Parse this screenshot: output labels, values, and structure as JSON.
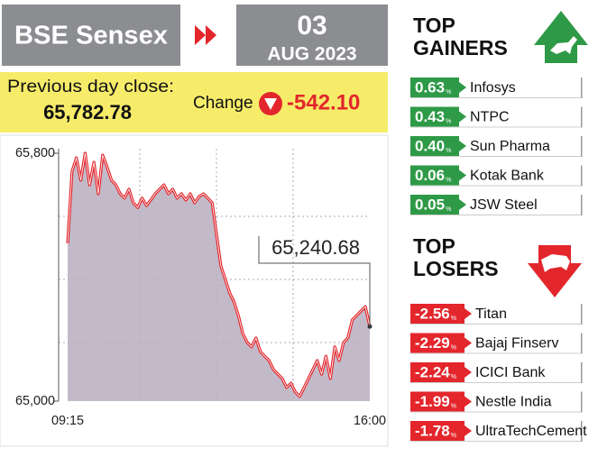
{
  "header": {
    "title": "BSE Sensex",
    "day": "03",
    "month_year": "AUG 2023"
  },
  "summary": {
    "previous_close_label": "Previous day close:",
    "previous_close": "65,782.78",
    "change_label": "Change",
    "change": "-542.10"
  },
  "chart_data": {
    "type": "line",
    "categories": [
      "09:15",
      null,
      null,
      null,
      null,
      null,
      null,
      null,
      null,
      null,
      null,
      null,
      null,
      null,
      null,
      null,
      null,
      null,
      null,
      null,
      null,
      null,
      null,
      null,
      null,
      null,
      null,
      null,
      null,
      null,
      null,
      null,
      null,
      null,
      null,
      null,
      null,
      null,
      null,
      null,
      null,
      null,
      null,
      null,
      null,
      null,
      null,
      null,
      null,
      null,
      null,
      null,
      null,
      null,
      null,
      null,
      null,
      null,
      null,
      null,
      null,
      null,
      null,
      null,
      null,
      null,
      null,
      null,
      null,
      "16:00"
    ],
    "values": [
      65509,
      65742,
      65785,
      65713,
      65800,
      65698,
      65771,
      65669,
      65794,
      65756,
      65713,
      65698,
      65669,
      65655,
      65684,
      65640,
      65625,
      65655,
      65631,
      65649,
      65669,
      65684,
      65698,
      65669,
      65684,
      65655,
      65669,
      65649,
      65669,
      65640,
      65660,
      65669,
      65655,
      65640,
      65538,
      65436,
      65393,
      65349,
      65320,
      65276,
      65218,
      65189,
      65175,
      65204,
      65160,
      65145,
      65131,
      65102,
      65087,
      65073,
      65044,
      65058,
      65029,
      65015,
      65044,
      65073,
      65102,
      65131,
      65087,
      65145,
      65073,
      65175,
      65131,
      65189,
      65204,
      65262,
      65276,
      65291,
      65305,
      65240.68
    ],
    "color": "#e3262c",
    "fill_color": "#b9aec0",
    "ylim": [
      65000,
      65800
    ],
    "yticks": [
      {
        "value": 65800,
        "label": "65,800"
      },
      {
        "value": 65000,
        "label": "65,000"
      }
    ],
    "annotation": "65,240.68"
  },
  "gainers": {
    "title": [
      "TOP",
      "GAINERS"
    ],
    "color": "#2e9a47",
    "rows": [
      {
        "value": "0.63",
        "unit": "%",
        "name": "Infosys"
      },
      {
        "value": "0.43",
        "unit": "%",
        "name": "NTPC"
      },
      {
        "value": "0.40",
        "unit": "%",
        "name": "Sun Pharma"
      },
      {
        "value": "0.06",
        "unit": "%",
        "name": "Kotak Bank"
      },
      {
        "value": "0.05",
        "unit": "%",
        "name": "JSW Steel"
      }
    ]
  },
  "losers": {
    "title": [
      "TOP",
      "LOSERS"
    ],
    "color": "#e3262c",
    "rows": [
      {
        "value": "-2.56",
        "unit": "%",
        "name": "Titan"
      },
      {
        "value": "-2.29",
        "unit": "%",
        "name": "Bajaj Finserv"
      },
      {
        "value": "-2.24",
        "unit": "%",
        "name": "ICICI Bank"
      },
      {
        "value": "-1.99",
        "unit": "%",
        "name": "Nestle India"
      },
      {
        "value": "-1.78",
        "unit": "%",
        "name": "UltraTechCement"
      }
    ]
  }
}
